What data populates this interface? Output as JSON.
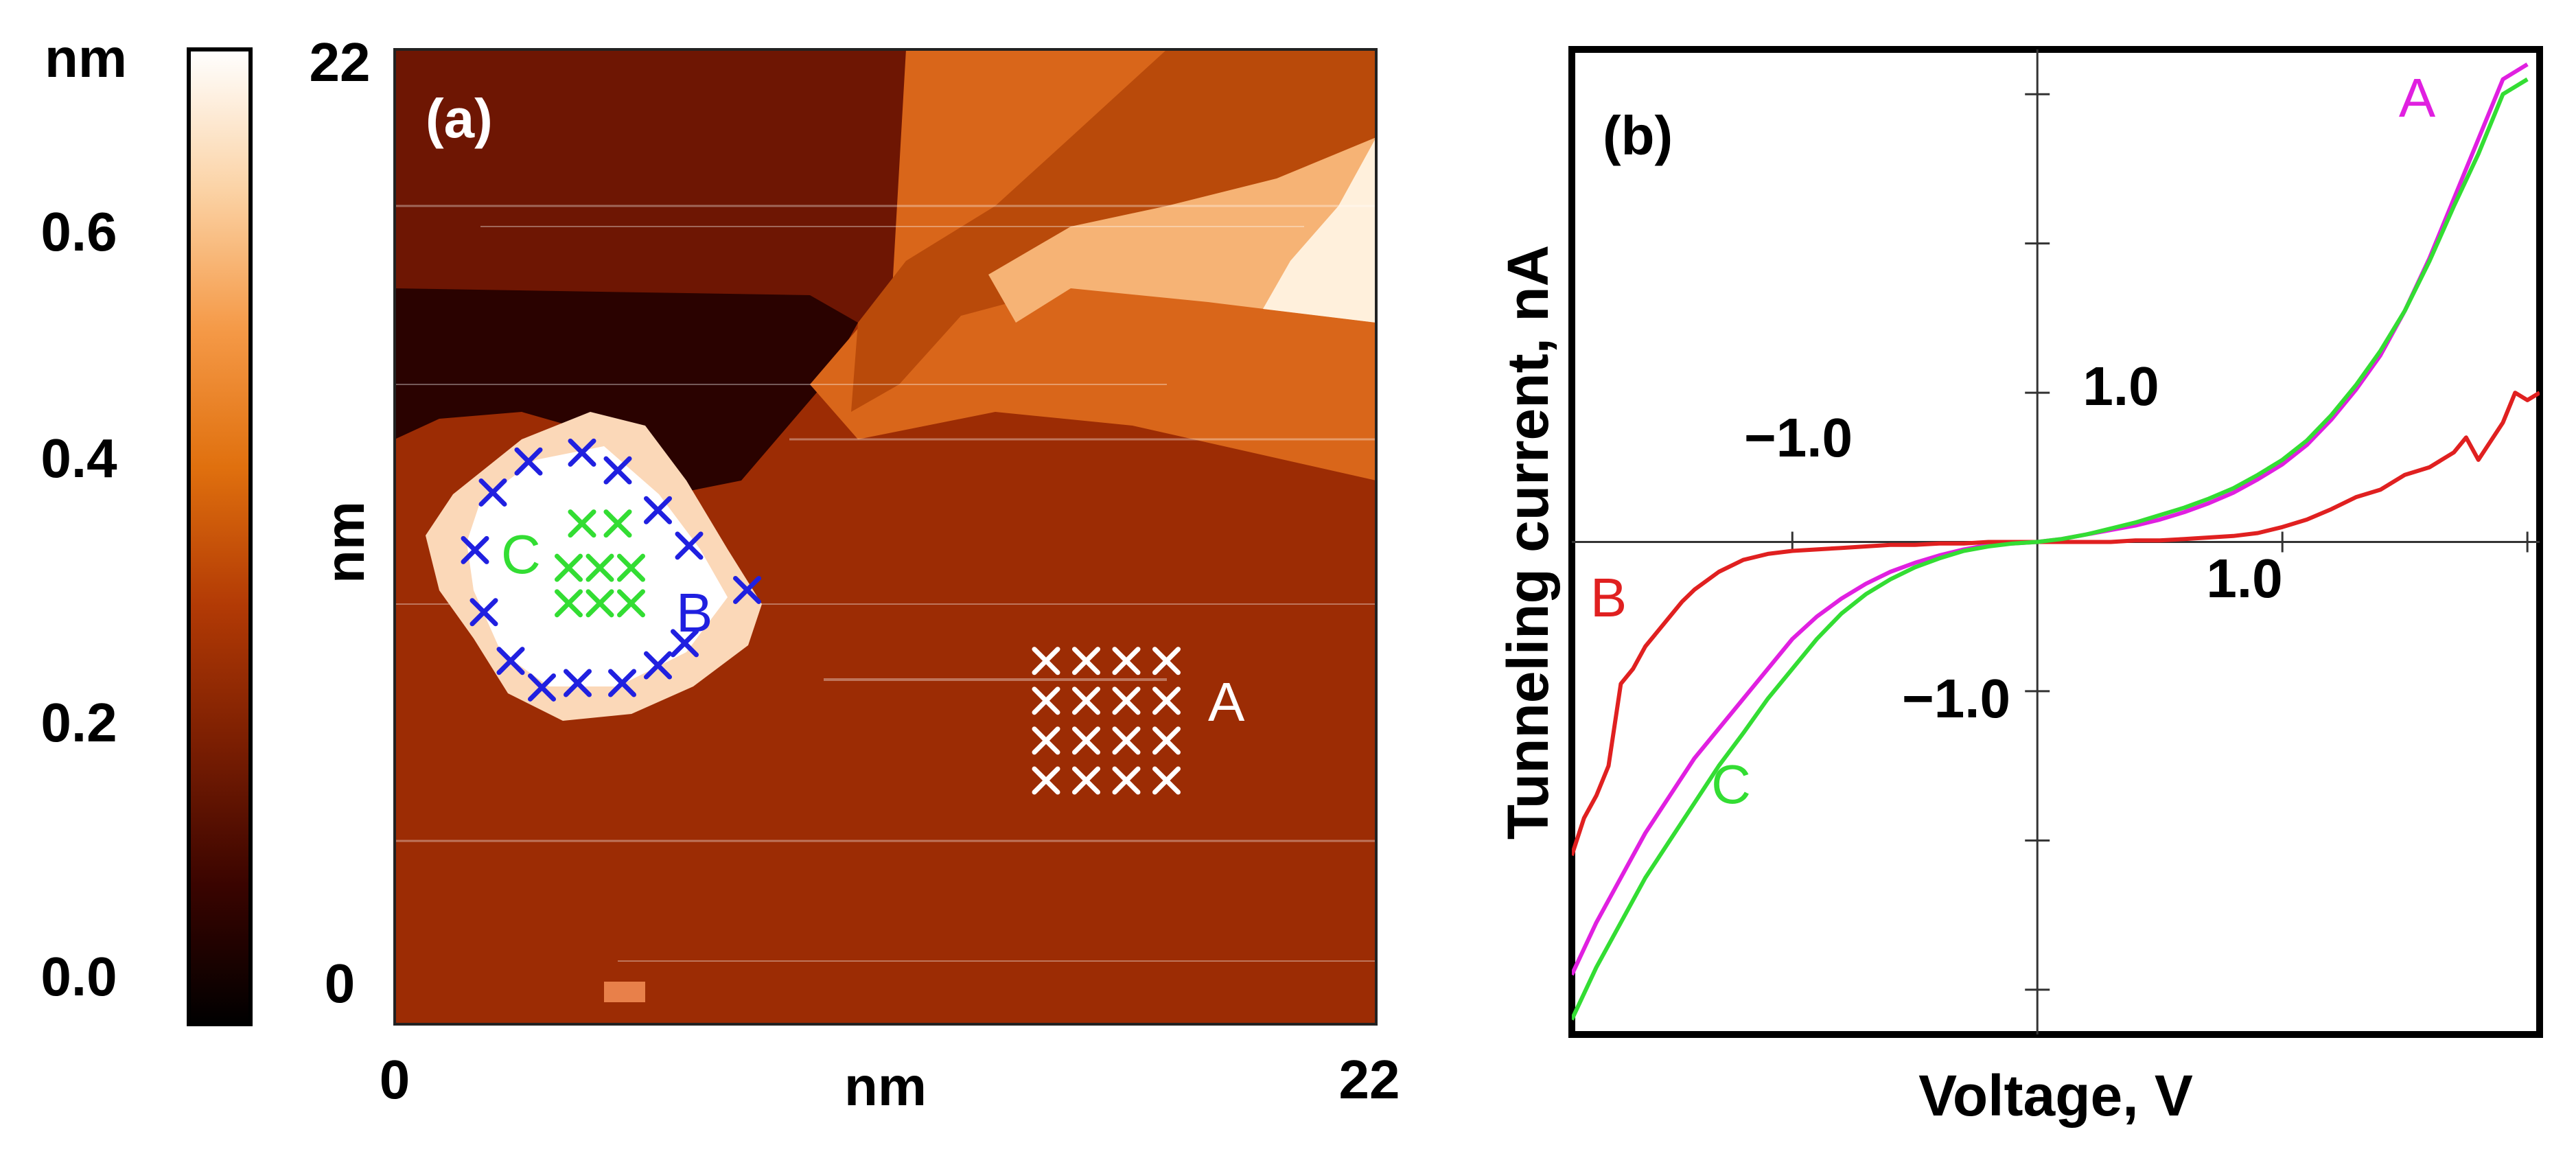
{
  "colorbar": {
    "unit": "nm",
    "ticks": [
      {
        "label": "0.6",
        "value": 0.6
      },
      {
        "label": "0.4",
        "value": 0.4
      },
      {
        "label": "0.2",
        "value": 0.2
      },
      {
        "label": "0.0",
        "value": 0.0
      }
    ],
    "range": [
      0,
      0.75
    ],
    "colors": [
      "#000000",
      "#3a0400",
      "#7a1e02",
      "#b23a05",
      "#e0700e",
      "#f59a48",
      "#fbd3a6",
      "#ffffff"
    ]
  },
  "panel_a": {
    "label": "(a)",
    "x_min_label": "0",
    "x_max_label": "22",
    "x_unit": "nm",
    "y_min_label": "0",
    "y_max_label": "22",
    "y_unit": "nm",
    "range_nm": [
      0,
      22
    ],
    "markers": [
      {
        "group": "A",
        "label": "A",
        "color": "#ffffff",
        "grid": {
          "cols": 4,
          "rows": 4,
          "x_start": 14.6,
          "dx": 0.9,
          "y_start": 8.2,
          "dy": -0.9
        }
      },
      {
        "group": "B",
        "label": "B",
        "color": "#2020e0",
        "points": [
          [
            2.2,
            12.0
          ],
          [
            3.0,
            12.7
          ],
          [
            4.2,
            12.9
          ],
          [
            5.0,
            12.5
          ],
          [
            5.9,
            11.6
          ],
          [
            6.6,
            10.8
          ],
          [
            7.9,
            9.8
          ],
          [
            6.5,
            8.6
          ],
          [
            5.9,
            8.1
          ],
          [
            5.1,
            7.7
          ],
          [
            4.1,
            7.7
          ],
          [
            3.3,
            7.6
          ],
          [
            2.6,
            8.2
          ],
          [
            2.0,
            9.3
          ],
          [
            1.8,
            10.7
          ]
        ]
      },
      {
        "group": "C",
        "label": "C",
        "color": "#33dd33",
        "points": [
          [
            4.2,
            11.3
          ],
          [
            5.0,
            11.3
          ],
          [
            3.9,
            10.3
          ],
          [
            4.6,
            10.3
          ],
          [
            5.3,
            10.3
          ],
          [
            3.9,
            9.5
          ],
          [
            4.6,
            9.5
          ],
          [
            5.3,
            9.5
          ]
        ]
      }
    ]
  },
  "chart_data": {
    "type": "line",
    "title": "(b)",
    "xlabel": "Voltage, V",
    "ylabel": "Tunneling current, nA",
    "xlim": [
      -1.9,
      2.05
    ],
    "ylim": [
      -3.3,
      3.3
    ],
    "x_tick_label": "1.0",
    "x_neg_tick_label": "−1.0",
    "y_tick_label": "1.0",
    "y_neg_tick_label": "−1.0",
    "x_ticks": [
      -1.0,
      1.0,
      2.0
    ],
    "y_ticks": [
      -3.0,
      -2.0,
      -1.0,
      1.0,
      2.0,
      3.0
    ],
    "series": [
      {
        "name": "A",
        "color": "#e020e0",
        "x": [
          -1.9,
          -1.8,
          -1.7,
          -1.6,
          -1.5,
          -1.4,
          -1.3,
          -1.2,
          -1.1,
          -1.0,
          -0.9,
          -0.8,
          -0.7,
          -0.6,
          -0.5,
          -0.4,
          -0.3,
          -0.2,
          -0.1,
          0.0,
          0.1,
          0.2,
          0.3,
          0.4,
          0.5,
          0.6,
          0.7,
          0.8,
          0.9,
          1.0,
          1.1,
          1.2,
          1.3,
          1.4,
          1.5,
          1.6,
          1.7,
          1.8,
          1.9,
          2.0
        ],
        "y": [
          -2.9,
          -2.55,
          -2.25,
          -1.95,
          -1.7,
          -1.45,
          -1.25,
          -1.05,
          -0.85,
          -0.65,
          -0.5,
          -0.38,
          -0.28,
          -0.2,
          -0.14,
          -0.09,
          -0.05,
          -0.02,
          -0.01,
          0.0,
          0.02,
          0.05,
          0.08,
          0.11,
          0.15,
          0.2,
          0.26,
          0.33,
          0.42,
          0.52,
          0.65,
          0.82,
          1.02,
          1.25,
          1.55,
          1.9,
          2.3,
          2.7,
          3.1,
          3.2
        ]
      },
      {
        "name": "B",
        "color": "#e02020",
        "x": [
          -1.9,
          -1.85,
          -1.8,
          -1.75,
          -1.7,
          -1.65,
          -1.6,
          -1.55,
          -1.5,
          -1.45,
          -1.4,
          -1.3,
          -1.2,
          -1.1,
          -1.0,
          -0.9,
          -0.8,
          -0.7,
          -0.6,
          -0.5,
          -0.4,
          -0.3,
          -0.2,
          -0.1,
          0.0,
          0.1,
          0.2,
          0.3,
          0.4,
          0.5,
          0.6,
          0.7,
          0.8,
          0.9,
          1.0,
          1.1,
          1.2,
          1.3,
          1.4,
          1.5,
          1.6,
          1.7,
          1.75,
          1.8,
          1.9,
          1.95,
          2.0,
          2.05
        ],
        "y": [
          -2.1,
          -1.85,
          -1.7,
          -1.5,
          -0.95,
          -0.85,
          -0.7,
          -0.6,
          -0.5,
          -0.4,
          -0.32,
          -0.2,
          -0.12,
          -0.08,
          -0.06,
          -0.05,
          -0.04,
          -0.03,
          -0.02,
          -0.02,
          -0.01,
          -0.01,
          0.0,
          0.0,
          0.0,
          0.0,
          0.0,
          0.0,
          0.01,
          0.01,
          0.02,
          0.03,
          0.04,
          0.06,
          0.1,
          0.15,
          0.22,
          0.3,
          0.35,
          0.45,
          0.5,
          0.6,
          0.7,
          0.55,
          0.8,
          1.0,
          0.95,
          1.0
        ]
      },
      {
        "name": "C",
        "color": "#33dd33",
        "x": [
          -1.9,
          -1.8,
          -1.7,
          -1.6,
          -1.5,
          -1.4,
          -1.3,
          -1.2,
          -1.1,
          -1.0,
          -0.9,
          -0.8,
          -0.7,
          -0.6,
          -0.5,
          -0.4,
          -0.3,
          -0.2,
          -0.1,
          0.0,
          0.1,
          0.2,
          0.3,
          0.4,
          0.5,
          0.6,
          0.7,
          0.8,
          0.9,
          1.0,
          1.1,
          1.2,
          1.3,
          1.4,
          1.5,
          1.6,
          1.7,
          1.8,
          1.9,
          2.0
        ],
        "y": [
          -3.2,
          -2.85,
          -2.55,
          -2.25,
          -2.0,
          -1.75,
          -1.5,
          -1.28,
          -1.05,
          -0.85,
          -0.65,
          -0.48,
          -0.35,
          -0.25,
          -0.17,
          -0.11,
          -0.06,
          -0.03,
          -0.01,
          0.0,
          0.02,
          0.05,
          0.09,
          0.13,
          0.18,
          0.23,
          0.29,
          0.36,
          0.45,
          0.55,
          0.68,
          0.85,
          1.05,
          1.28,
          1.55,
          1.88,
          2.25,
          2.6,
          3.0,
          3.1
        ]
      }
    ],
    "annotations": [
      {
        "text": "A",
        "x": 1.55,
        "y": 2.85,
        "color": "#e020e0"
      },
      {
        "text": "B",
        "x": -1.75,
        "y": -0.5,
        "color": "#e02020"
      },
      {
        "text": "C",
        "x": -1.25,
        "y": -1.75,
        "color": "#33dd33"
      }
    ]
  }
}
